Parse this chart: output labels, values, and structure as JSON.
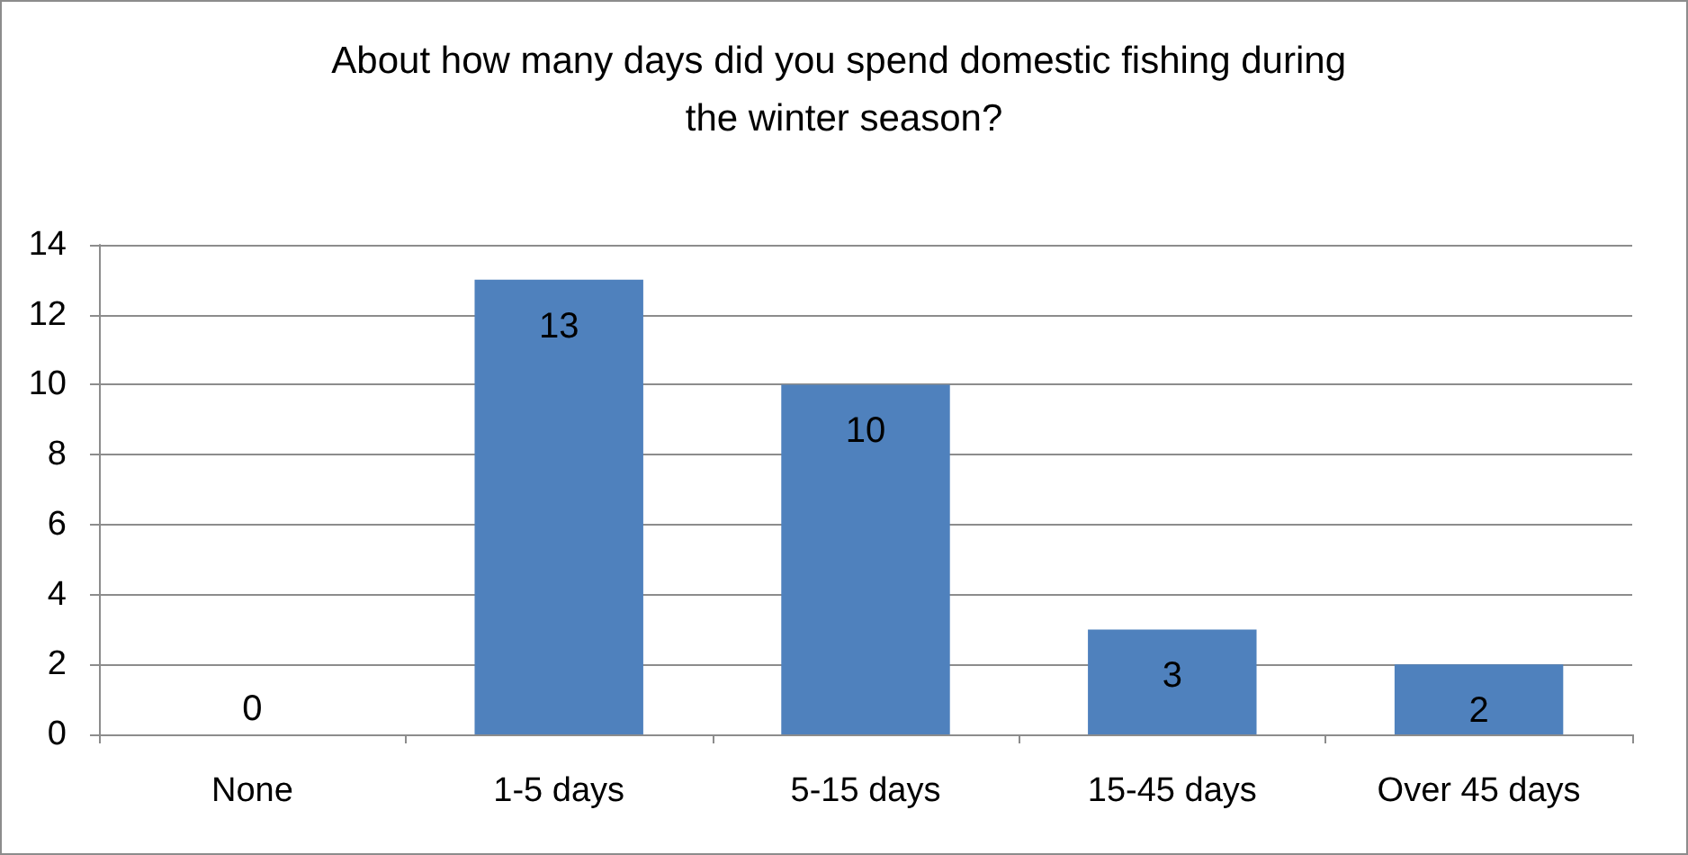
{
  "chart_data": {
    "type": "bar",
    "title": "About how many days did you spend domestic fishing during the winter season?",
    "categories": [
      "None",
      "1-5 days",
      "5-15 days",
      "15-45 days",
      "Over 45 days"
    ],
    "values": [
      0,
      13,
      10,
      3,
      2
    ],
    "color": "#4f81bd",
    "ylim": [
      0,
      14
    ],
    "yticks": [
      0,
      2,
      4,
      6,
      8,
      10,
      12,
      14
    ],
    "grid": "y",
    "data_labels": true
  }
}
